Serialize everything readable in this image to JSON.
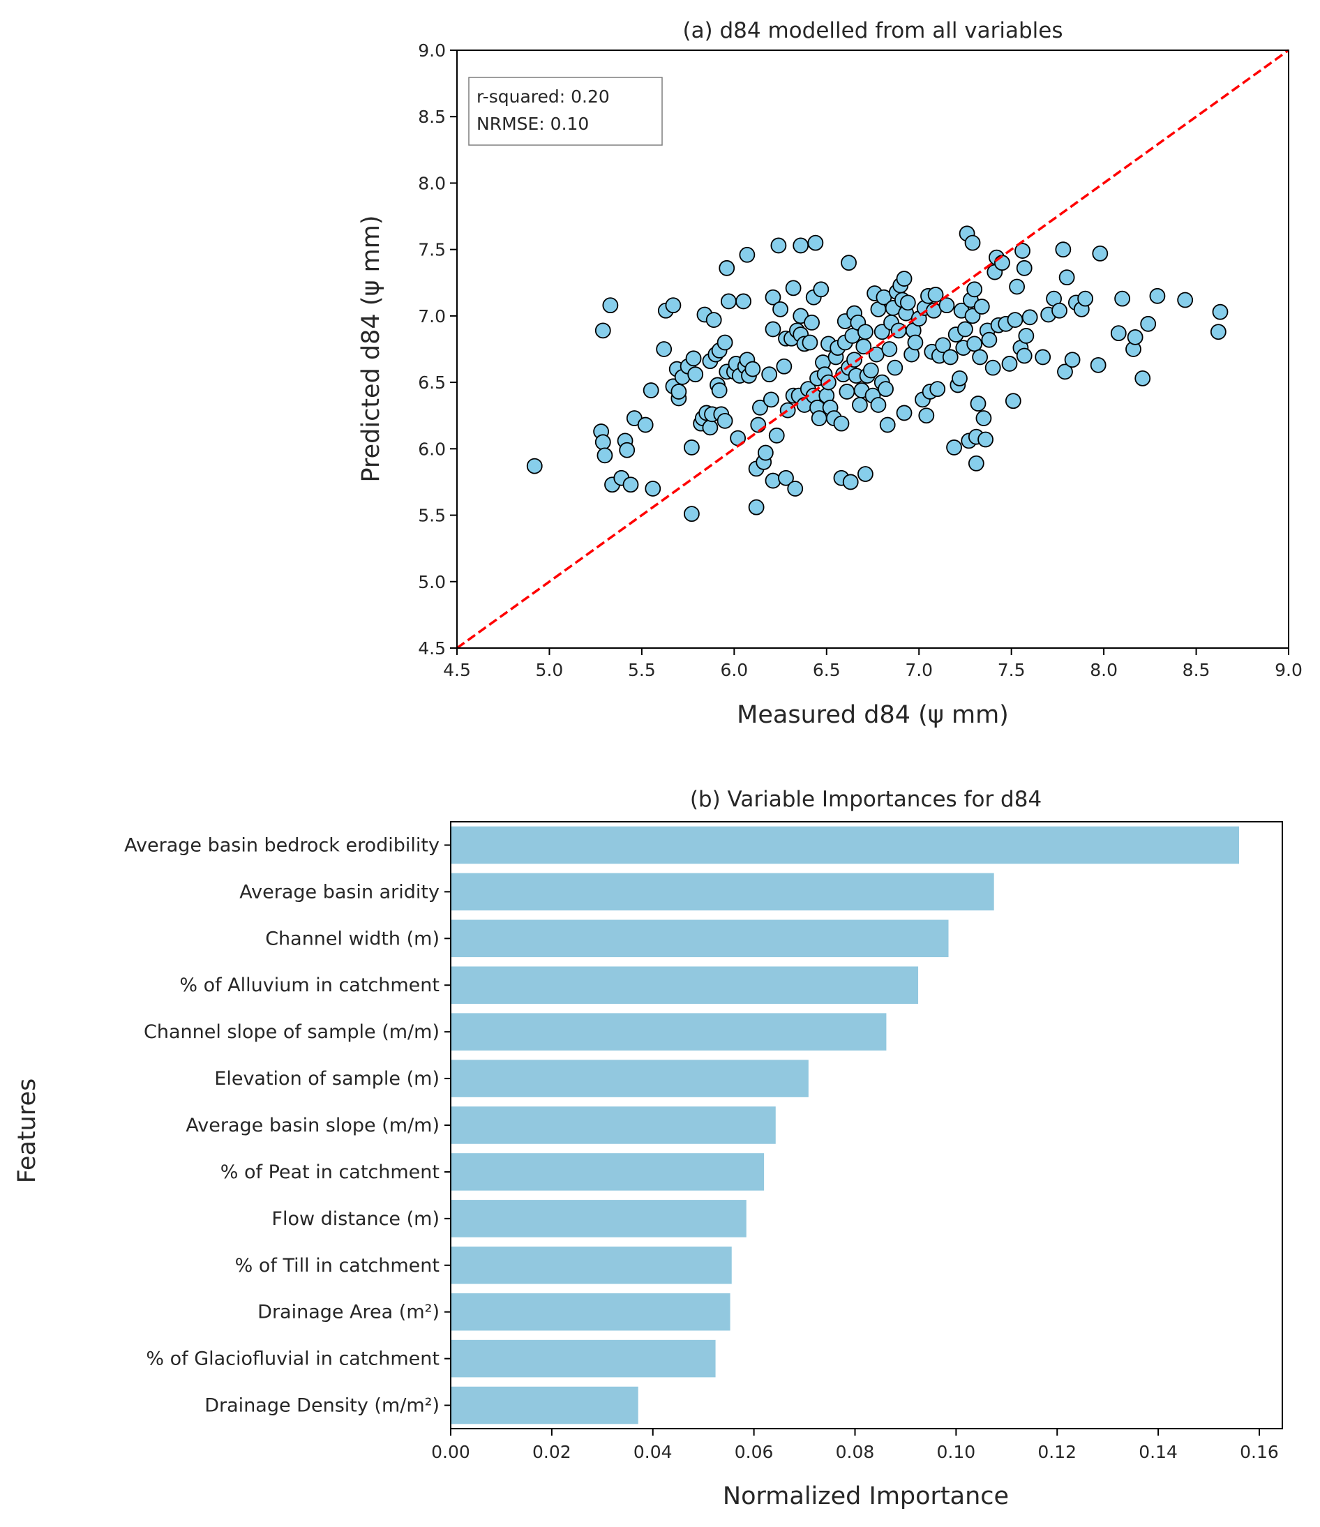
{
  "chart_data": [
    {
      "type": "scatter",
      "title": "(a) d84 modelled from all variables",
      "xlabel": "Measured d84 (ψ mm)",
      "ylabel": "Predicted d84 (ψ mm)",
      "xlim": [
        4.5,
        9.0
      ],
      "ylim": [
        4.5,
        9.0
      ],
      "xticks": [
        "4.5",
        "5.0",
        "5.5",
        "6.0",
        "6.5",
        "7.0",
        "7.5",
        "8.0",
        "8.5",
        "9.0"
      ],
      "yticks": [
        "4.5",
        "5.0",
        "5.5",
        "6.0",
        "6.5",
        "7.0",
        "7.5",
        "8.0",
        "8.5",
        "9.0"
      ],
      "annotation": [
        "r-squared: 0.20",
        "NRMSE: 0.10"
      ],
      "reference_line": {
        "label": "1:1 line",
        "color": "#ff0000",
        "style": "dashed"
      },
      "marker_color": "#87ceeb",
      "points": [
        [
          4.92,
          5.87
        ],
        [
          5.28,
          6.13
        ],
        [
          5.29,
          6.05
        ],
        [
          5.3,
          5.95
        ],
        [
          5.29,
          6.89
        ],
        [
          5.33,
          7.08
        ],
        [
          5.34,
          5.73
        ],
        [
          5.39,
          5.78
        ],
        [
          5.41,
          6.06
        ],
        [
          5.42,
          5.99
        ],
        [
          5.44,
          5.73
        ],
        [
          5.46,
          6.23
        ],
        [
          5.52,
          6.18
        ],
        [
          5.55,
          6.44
        ],
        [
          5.56,
          5.7
        ],
        [
          5.62,
          6.75
        ],
        [
          5.63,
          7.04
        ],
        [
          5.67,
          7.08
        ],
        [
          5.67,
          6.47
        ],
        [
          5.69,
          6.6
        ],
        [
          5.7,
          6.38
        ],
        [
          5.7,
          6.43
        ],
        [
          5.72,
          6.54
        ],
        [
          5.75,
          6.62
        ],
        [
          5.77,
          6.01
        ],
        [
          5.77,
          5.51
        ],
        [
          5.78,
          6.68
        ],
        [
          5.79,
          6.56
        ],
        [
          5.82,
          6.19
        ],
        [
          5.83,
          6.23
        ],
        [
          5.84,
          7.01
        ],
        [
          5.85,
          6.27
        ],
        [
          5.87,
          6.66
        ],
        [
          5.87,
          6.16
        ],
        [
          5.88,
          6.26
        ],
        [
          5.89,
          6.97
        ],
        [
          5.9,
          6.71
        ],
        [
          5.91,
          6.48
        ],
        [
          5.92,
          6.44
        ],
        [
          5.92,
          6.74
        ],
        [
          5.93,
          6.26
        ],
        [
          5.95,
          6.21
        ],
        [
          5.95,
          6.8
        ],
        [
          5.96,
          6.58
        ],
        [
          5.96,
          7.36
        ],
        [
          5.97,
          7.11
        ],
        [
          6.0,
          6.58
        ],
        [
          6.01,
          6.64
        ],
        [
          6.02,
          6.08
        ],
        [
          6.03,
          6.55
        ],
        [
          6.05,
          7.11
        ],
        [
          6.06,
          6.62
        ],
        [
          6.07,
          7.46
        ],
        [
          6.07,
          6.67
        ],
        [
          6.08,
          6.55
        ],
        [
          6.1,
          6.6
        ],
        [
          6.12,
          5.56
        ],
        [
          6.12,
          5.85
        ],
        [
          6.13,
          6.18
        ],
        [
          6.14,
          6.31
        ],
        [
          6.16,
          5.9
        ],
        [
          6.17,
          5.97
        ],
        [
          6.19,
          6.56
        ],
        [
          6.2,
          6.37
        ],
        [
          6.21,
          6.9
        ],
        [
          6.21,
          7.14
        ],
        [
          6.21,
          5.76
        ],
        [
          6.23,
          6.1
        ],
        [
          6.24,
          7.53
        ],
        [
          6.25,
          7.05
        ],
        [
          6.27,
          6.62
        ],
        [
          6.28,
          6.83
        ],
        [
          6.28,
          5.78
        ],
        [
          6.29,
          6.29
        ],
        [
          6.31,
          6.83
        ],
        [
          6.32,
          7.21
        ],
        [
          6.32,
          6.4
        ],
        [
          6.33,
          5.7
        ],
        [
          6.34,
          6.89
        ],
        [
          6.35,
          6.4
        ],
        [
          6.36,
          7.0
        ],
        [
          6.36,
          6.86
        ],
        [
          6.36,
          7.53
        ],
        [
          6.38,
          6.33
        ],
        [
          6.38,
          6.79
        ],
        [
          6.4,
          6.45
        ],
        [
          6.41,
          6.8
        ],
        [
          6.42,
          6.95
        ],
        [
          6.43,
          6.4
        ],
        [
          6.43,
          7.14
        ],
        [
          6.44,
          7.55
        ],
        [
          6.45,
          6.31
        ],
        [
          6.45,
          6.53
        ],
        [
          6.46,
          6.23
        ],
        [
          6.47,
          7.2
        ],
        [
          6.48,
          6.65
        ],
        [
          6.49,
          6.56
        ],
        [
          6.5,
          6.4
        ],
        [
          6.51,
          6.5
        ],
        [
          6.51,
          6.79
        ],
        [
          6.52,
          6.31
        ],
        [
          6.54,
          6.23
        ],
        [
          6.55,
          6.69
        ],
        [
          6.56,
          6.76
        ],
        [
          6.58,
          5.78
        ],
        [
          6.58,
          6.19
        ],
        [
          6.59,
          6.56
        ],
        [
          6.6,
          6.96
        ],
        [
          6.6,
          6.8
        ],
        [
          6.61,
          6.43
        ],
        [
          6.62,
          7.4
        ],
        [
          6.62,
          6.61
        ],
        [
          6.63,
          5.75
        ],
        [
          6.64,
          6.85
        ],
        [
          6.65,
          7.02
        ],
        [
          6.65,
          6.67
        ],
        [
          6.66,
          6.55
        ],
        [
          6.67,
          6.95
        ],
        [
          6.68,
          6.33
        ],
        [
          6.69,
          6.44
        ],
        [
          6.7,
          6.77
        ],
        [
          6.71,
          5.81
        ],
        [
          6.71,
          6.88
        ],
        [
          6.72,
          6.55
        ],
        [
          6.74,
          6.59
        ],
        [
          6.75,
          6.4
        ],
        [
          6.76,
          7.17
        ],
        [
          6.77,
          6.71
        ],
        [
          6.78,
          7.05
        ],
        [
          6.78,
          6.33
        ],
        [
          6.8,
          6.5
        ],
        [
          6.8,
          6.88
        ],
        [
          6.81,
          7.14
        ],
        [
          6.82,
          6.45
        ],
        [
          6.83,
          6.18
        ],
        [
          6.84,
          6.75
        ],
        [
          6.85,
          6.95
        ],
        [
          6.86,
          7.06
        ],
        [
          6.87,
          6.61
        ],
        [
          6.88,
          7.18
        ],
        [
          6.89,
          6.89
        ],
        [
          6.9,
          7.23
        ],
        [
          6.91,
          7.12
        ],
        [
          6.92,
          6.27
        ],
        [
          6.92,
          7.28
        ],
        [
          6.93,
          7.02
        ],
        [
          6.94,
          7.1
        ],
        [
          6.96,
          6.71
        ],
        [
          6.97,
          6.89
        ],
        [
          6.98,
          6.8
        ],
        [
          7.0,
          6.98
        ],
        [
          7.02,
          6.37
        ],
        [
          7.03,
          7.06
        ],
        [
          7.04,
          6.25
        ],
        [
          7.05,
          7.15
        ],
        [
          7.06,
          6.43
        ],
        [
          7.07,
          6.73
        ],
        [
          7.08,
          7.04
        ],
        [
          7.09,
          7.16
        ],
        [
          7.1,
          6.45
        ],
        [
          7.11,
          6.7
        ],
        [
          7.13,
          6.78
        ],
        [
          7.15,
          7.08
        ],
        [
          7.17,
          6.69
        ],
        [
          7.19,
          6.01
        ],
        [
          7.2,
          6.86
        ],
        [
          7.21,
          6.48
        ],
        [
          7.22,
          6.53
        ],
        [
          7.23,
          7.04
        ],
        [
          7.24,
          6.76
        ],
        [
          7.25,
          6.9
        ],
        [
          7.26,
          7.62
        ],
        [
          7.27,
          6.06
        ],
        [
          7.28,
          7.12
        ],
        [
          7.29,
          7.55
        ],
        [
          7.29,
          7.0
        ],
        [
          7.3,
          6.79
        ],
        [
          7.3,
          7.2
        ],
        [
          7.31,
          5.89
        ],
        [
          7.31,
          6.09
        ],
        [
          7.32,
          6.34
        ],
        [
          7.33,
          6.69
        ],
        [
          7.34,
          7.07
        ],
        [
          7.35,
          6.23
        ],
        [
          7.36,
          6.07
        ],
        [
          7.37,
          6.89
        ],
        [
          7.38,
          6.82
        ],
        [
          7.4,
          6.61
        ],
        [
          7.41,
          7.33
        ],
        [
          7.42,
          7.44
        ],
        [
          7.43,
          6.93
        ],
        [
          7.45,
          7.4
        ],
        [
          7.47,
          6.94
        ],
        [
          7.49,
          6.64
        ],
        [
          7.51,
          6.36
        ],
        [
          7.52,
          6.97
        ],
        [
          7.53,
          7.22
        ],
        [
          7.55,
          6.76
        ],
        [
          7.56,
          7.49
        ],
        [
          7.57,
          7.36
        ],
        [
          7.57,
          6.7
        ],
        [
          7.58,
          6.85
        ],
        [
          7.6,
          6.99
        ],
        [
          7.67,
          6.69
        ],
        [
          7.7,
          7.01
        ],
        [
          7.73,
          7.13
        ],
        [
          7.76,
          7.04
        ],
        [
          7.78,
          7.5
        ],
        [
          7.79,
          6.58
        ],
        [
          7.8,
          7.29
        ],
        [
          7.83,
          6.67
        ],
        [
          7.85,
          7.1
        ],
        [
          7.88,
          7.05
        ],
        [
          7.9,
          7.13
        ],
        [
          7.97,
          6.63
        ],
        [
          7.98,
          7.47
        ],
        [
          8.08,
          6.87
        ],
        [
          8.1,
          7.13
        ],
        [
          8.16,
          6.75
        ],
        [
          8.17,
          6.84
        ],
        [
          8.21,
          6.53
        ],
        [
          8.24,
          6.94
        ],
        [
          8.29,
          7.15
        ],
        [
          8.44,
          7.12
        ],
        [
          8.62,
          6.88
        ],
        [
          8.63,
          7.03
        ]
      ]
    },
    {
      "type": "bar",
      "orientation": "horizontal",
      "title": "(b) Variable Importances for d84",
      "xlabel": "Normalized Importance",
      "ylabel": "Features",
      "xlim": [
        0,
        0.165
      ],
      "xticks": [
        "0.00",
        "0.02",
        "0.04",
        "0.06",
        "0.08",
        "0.10",
        "0.12",
        "0.14",
        "0.16"
      ],
      "bar_color": "#92c8df",
      "categories": [
        "Average basin bedrock erodibility",
        "Average basin aridity",
        "Channel width (m)",
        "% of Alluvium in catchment ",
        "Channel slope of sample (m/m)",
        "Elevation of sample (m)",
        "Average basin slope (m/m)",
        "% of Peat in catchment ",
        "Flow distance (m)",
        "% of Till in catchment ",
        "Drainage Area (m²)",
        "% of Glaciofluvial in catchment ",
        "Drainage Density (m/m²)"
      ],
      "values": [
        0.156,
        0.1075,
        0.0985,
        0.0925,
        0.0862,
        0.0708,
        0.0643,
        0.062,
        0.0585,
        0.0556,
        0.0553,
        0.0524,
        0.0371
      ]
    }
  ]
}
